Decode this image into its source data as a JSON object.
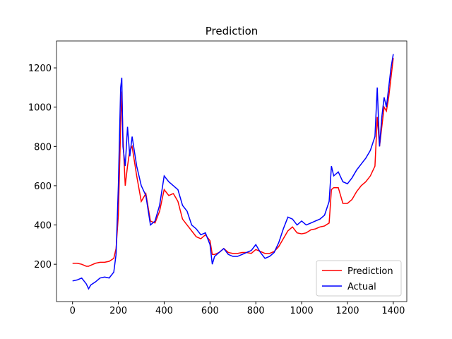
{
  "chart_data": {
    "type": "line",
    "title": "Prediction",
    "x": [
      0,
      20,
      40,
      60,
      70,
      80,
      100,
      120,
      140,
      160,
      180,
      190,
      200,
      210,
      215,
      220,
      230,
      240,
      250,
      260,
      280,
      300,
      320,
      340,
      360,
      380,
      400,
      420,
      440,
      460,
      480,
      500,
      520,
      540,
      560,
      580,
      600,
      610,
      620,
      640,
      660,
      680,
      700,
      720,
      740,
      760,
      780,
      800,
      820,
      840,
      860,
      880,
      900,
      920,
      940,
      960,
      980,
      1000,
      1020,
      1040,
      1060,
      1080,
      1100,
      1120,
      1130,
      1140,
      1160,
      1180,
      1200,
      1220,
      1240,
      1260,
      1280,
      1300,
      1320,
      1330,
      1340,
      1350,
      1360,
      1370,
      1380,
      1390,
      1400
    ],
    "series": [
      {
        "name": "Prediction",
        "color": "#ff0000",
        "values": [
          205,
          205,
          200,
          190,
          190,
          195,
          205,
          210,
          210,
          215,
          230,
          280,
          450,
          900,
          1080,
          850,
          600,
          700,
          780,
          800,
          650,
          520,
          560,
          420,
          410,
          470,
          580,
          550,
          560,
          520,
          430,
          400,
          370,
          340,
          330,
          350,
          320,
          250,
          250,
          260,
          280,
          260,
          255,
          255,
          260,
          260,
          255,
          275,
          265,
          255,
          255,
          265,
          290,
          330,
          370,
          390,
          360,
          355,
          360,
          375,
          380,
          390,
          395,
          410,
          580,
          590,
          590,
          510,
          510,
          530,
          570,
          600,
          620,
          650,
          700,
          950,
          800,
          900,
          1000,
          980,
          1050,
          1150,
          1250
        ]
      },
      {
        "name": "Actual",
        "color": "#0000ff",
        "values": [
          115,
          120,
          130,
          100,
          75,
          95,
          110,
          130,
          135,
          130,
          160,
          250,
          600,
          1100,
          1150,
          800,
          700,
          900,
          750,
          850,
          700,
          600,
          550,
          400,
          420,
          500,
          650,
          620,
          600,
          580,
          500,
          470,
          400,
          380,
          350,
          360,
          300,
          200,
          240,
          260,
          280,
          250,
          240,
          240,
          250,
          260,
          270,
          300,
          260,
          230,
          240,
          260,
          310,
          380,
          440,
          430,
          400,
          420,
          400,
          410,
          420,
          430,
          450,
          520,
          700,
          650,
          670,
          620,
          610,
          640,
          680,
          710,
          740,
          780,
          850,
          1100,
          800,
          950,
          1050,
          1000,
          1100,
          1200,
          1270
        ]
      }
    ],
    "xlim": [
      -70,
      1459
    ],
    "ylim": [
      10,
      1337
    ],
    "xticks": [
      0,
      200,
      400,
      600,
      800,
      1000,
      1200,
      1400
    ],
    "yticks": [
      200,
      400,
      600,
      800,
      1000,
      1200
    ],
    "legend": "lower right"
  }
}
